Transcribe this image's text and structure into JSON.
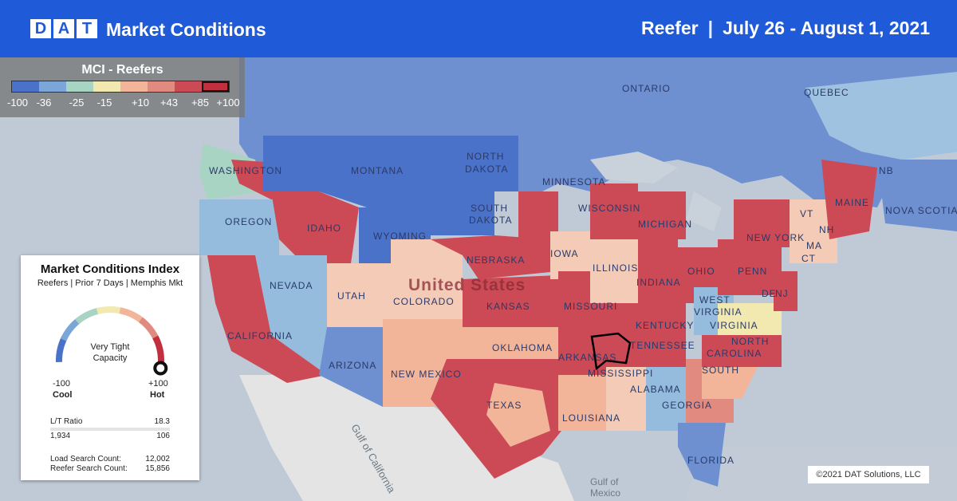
{
  "header": {
    "logo_letters": [
      "D",
      "A",
      "T"
    ],
    "title": "Market Conditions",
    "equipment": "Reefer",
    "separator": "|",
    "date_range": "July 26 - August 1, 2021"
  },
  "legend": {
    "title": "MCI - Reefers",
    "colors": [
      "#4a72c8",
      "#7ca6d8",
      "#a8d4c4",
      "#f1e9b0",
      "#f2b59a",
      "#e08a80",
      "#cc4a55",
      "#c0303f"
    ],
    "ticks": [
      "-100",
      "-36",
      "-25",
      "-15",
      "+10",
      "+43",
      "+85",
      "+100"
    ]
  },
  "card": {
    "title": "Market Conditions Index",
    "subtitle": "Reefers | Prior 7 Days | Memphis Mkt",
    "gauge_value": 0.97,
    "gauge_label_line1": "Very Tight",
    "gauge_label_line2": "Capacity",
    "min_value": "-100",
    "min_label": "Cool",
    "max_value": "+100",
    "max_label": "Hot",
    "lt_label": "L/T Ratio",
    "lt_value": "18.3",
    "loads": "1,934",
    "trucks": "106",
    "load_search_label": "Load Search Count:",
    "load_search_value": "12,002",
    "reefer_search_label": "Reefer Search Count:",
    "reefer_search_value": "15,856"
  },
  "map_labels": {
    "ontario": "ONTARIO",
    "quebec": "QUEBEC",
    "washington": "WASHINGTON",
    "montana": "MONTANA",
    "north_dakota_1": "NORTH",
    "north_dakota_2": "DAKOTA",
    "minnesota": "MINNESOTA",
    "oregon": "OREGON",
    "idaho": "IDAHO",
    "south_dakota_1": "SOUTH",
    "south_dakota_2": "DAKOTA",
    "wisconsin": "WISCONSIN",
    "michigan": "MICHIGAN",
    "wyoming": "WYOMING",
    "iowa": "IOWA",
    "nebraska": "NEBRASKA",
    "nevada": "NEVADA",
    "utah": "UTAH",
    "colorado": "COLORADO",
    "country": "United States",
    "kansas": "KANSAS",
    "missouri": "MISSOURI",
    "illinois": "ILLINOIS",
    "indiana": "INDIANA",
    "ohio": "OHIO",
    "california": "CALIFORNIA",
    "arizona": "ARIZONA",
    "new_mexico": "NEW MEXICO",
    "oklahoma": "OKLAHOMA",
    "arkansas": "ARKANSAS",
    "tennessee": "TENNESSEE",
    "kentucky": "KENTUCKY",
    "west_virginia_1": "WEST",
    "west_virginia_2": "VIRGINIA",
    "virginia": "VIRGINIA",
    "north_carolina_1": "NORTH",
    "north_carolina_2": "CAROLINA",
    "south_carolina": "SOUTH",
    "texas": "TEXAS",
    "louisiana": "LOUISIANA",
    "mississippi": "MISSISSIPPI",
    "alabama": "ALABAMA",
    "georgia": "GEORGIA",
    "florida": "FLORIDA",
    "penn": "PENN",
    "new_york": "NEW YORK",
    "maine": "MAINE",
    "vt": "VT",
    "nh": "NH",
    "ma": "MA",
    "ct": "CT",
    "nj": "NJ",
    "de": "DE",
    "nb": "NB",
    "nova_scotia": "NOVA SCOTIA",
    "gulf_california": "Gulf of California",
    "gulf_mexico_1": "Gulf of",
    "gulf_mexico_2": "Mexico"
  },
  "copyright": "©2021 DAT Solutions, LLC"
}
